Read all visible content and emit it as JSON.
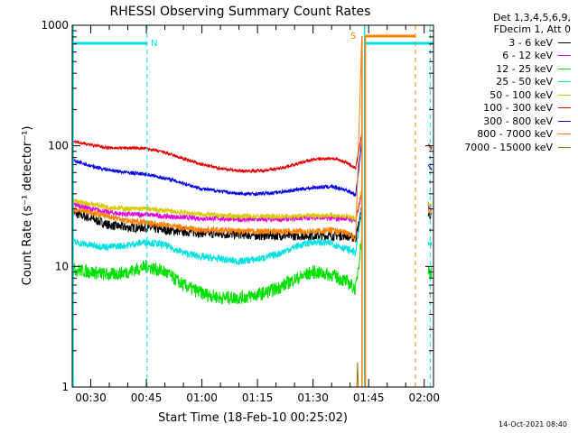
{
  "chart_data": {
    "type": "line",
    "title": "RHESSI Observing Summary Count Rates",
    "xlabel": "Start Time (18-Feb-10 00:25:02)",
    "ylabel": "Count Rate (s⁻¹ detector⁻¹)",
    "ylim": [
      1,
      1000
    ],
    "yscale": "log",
    "y_ticks": [
      "1",
      "10",
      "100",
      "1000"
    ],
    "x_ticks": [
      "00:30",
      "00:45",
      "01:00",
      "01:15",
      "01:30",
      "01:45",
      "02:00"
    ],
    "x_range_minutes": [
      25.0,
      122.5
    ],
    "legend_header": [
      "Det 1,3,4,5,6,9,",
      "FDecim 1, Att 0"
    ],
    "legend_placement": "right",
    "series": [
      {
        "name": "3 - 6 keV",
        "color": "#000000",
        "t": [
          25,
          30,
          35,
          40,
          45,
          50,
          55,
          60,
          65,
          70,
          75,
          80,
          85,
          90,
          95,
          99,
          101.5,
          103.2,
          104.0,
          120.5,
          121.0,
          121.5,
          122.0
        ],
        "v": [
          28,
          25,
          22,
          21,
          21,
          20,
          19.5,
          19,
          18.5,
          18.5,
          18,
          18,
          18,
          18,
          18,
          18,
          17,
          30,
          null,
          null,
          28,
          27,
          26
        ]
      },
      {
        "name": "6 - 12 keV",
        "color": "#e000e0",
        "t": [
          25,
          30,
          35,
          40,
          45,
          50,
          55,
          60,
          65,
          70,
          75,
          80,
          85,
          90,
          95,
          99,
          101.5,
          103.2,
          104.0,
          120.5,
          121.0,
          121.5,
          122.0
        ],
        "v": [
          33,
          30,
          28,
          27,
          27,
          26,
          25.5,
          25,
          25,
          24.5,
          24.5,
          24.5,
          25,
          25.5,
          25,
          25,
          24,
          40,
          null,
          null,
          32,
          31,
          30
        ]
      },
      {
        "name": "12 - 25 keV",
        "color": "#00e000",
        "t": [
          25,
          30,
          35,
          40,
          45,
          50,
          55,
          60,
          65,
          70,
          75,
          80,
          85,
          90,
          95,
          99,
          101.5,
          103.2,
          104.0,
          120.5,
          121.0,
          121.5,
          122.0
        ],
        "v": [
          9.5,
          9,
          8.5,
          9,
          10,
          9,
          7,
          6,
          5.5,
          5.5,
          5.8,
          6.5,
          7.8,
          9,
          8.5,
          7.5,
          6.5,
          18,
          null,
          null,
          9.5,
          9,
          9
        ]
      },
      {
        "name": "25 - 50 keV",
        "color": "#00e0e0",
        "t": [
          25,
          30,
          35,
          40,
          45,
          50,
          55,
          60,
          65,
          70,
          75,
          80,
          85,
          90,
          95,
          99,
          101.5,
          103.2,
          104.0,
          120.5,
          121.0,
          121.5,
          122.0
        ],
        "v": [
          16,
          15,
          14.5,
          15,
          16,
          15,
          13,
          12,
          11.5,
          11,
          11.5,
          12.5,
          14.5,
          16,
          15.5,
          14,
          13,
          30,
          null,
          null,
          16,
          15,
          15
        ]
      },
      {
        "name": "50 - 100 keV",
        "color": "#d8c800",
        "t": [
          25,
          30,
          35,
          40,
          45,
          50,
          55,
          60,
          65,
          70,
          75,
          80,
          85,
          90,
          95,
          99,
          101.5,
          103.2,
          104.0,
          120.5,
          121.0,
          121.5,
          122.0
        ],
        "v": [
          35,
          33,
          31,
          30,
          30,
          29,
          28,
          27,
          26.5,
          26,
          26,
          26,
          26,
          26.5,
          26.5,
          26,
          25,
          45,
          null,
          null,
          33,
          32,
          31
        ]
      },
      {
        "name": "100 - 300 keV",
        "color": "#e00000",
        "t": [
          25,
          30,
          35,
          40,
          45,
          50,
          55,
          60,
          65,
          70,
          75,
          80,
          85,
          90,
          95,
          99,
          101.5,
          103.2,
          104.0,
          120.5,
          121.0,
          121.5,
          122.0
        ],
        "v": [
          110,
          102,
          96,
          96,
          95,
          88,
          78,
          70,
          65,
          62,
          62,
          64,
          70,
          77,
          79,
          73,
          65,
          130,
          null,
          null,
          105,
          98,
          95
        ]
      },
      {
        "name": "300 - 800 keV",
        "color": "#0000e0",
        "t": [
          25,
          30,
          35,
          40,
          45,
          50,
          55,
          60,
          65,
          70,
          75,
          80,
          85,
          90,
          95,
          99,
          101.5,
          103.2,
          104.0,
          120.5,
          121.0,
          121.5,
          122.0
        ],
        "v": [
          76,
          68,
          63,
          60,
          58,
          54,
          49,
          44,
          42,
          40,
          40,
          41,
          43,
          45,
          46,
          43,
          39,
          110,
          null,
          null,
          68,
          65,
          64
        ]
      },
      {
        "name": "800 - 7000 keV",
        "color": "#ff8000",
        "t": [
          25,
          30,
          35,
          40,
          45,
          50,
          55,
          60,
          65,
          70,
          75,
          80,
          85,
          90,
          95,
          99,
          101.5,
          103.2,
          104.0,
          120.5,
          121.0,
          121.5,
          122.0
        ],
        "v": [
          30,
          28,
          26,
          24,
          23,
          22,
          21,
          20,
          20,
          19.5,
          19.5,
          19.5,
          19.5,
          19.5,
          20,
          19,
          17,
          900,
          null,
          null,
          30,
          28,
          28
        ]
      },
      {
        "name": "7000 - 15000 keV",
        "color": "#a07000",
        "t": [
          101.8,
          102.0,
          102.2
        ],
        "v": [
          1.0,
          1.6,
          1.0
        ]
      }
    ],
    "annotations": [
      {
        "text": "N",
        "color": "#00e0e0",
        "t": 45.2
      },
      {
        "text": "S",
        "color": "#ff8000",
        "t": 103.0
      }
    ],
    "timestamp": "14-Oct-2021 08:40"
  }
}
